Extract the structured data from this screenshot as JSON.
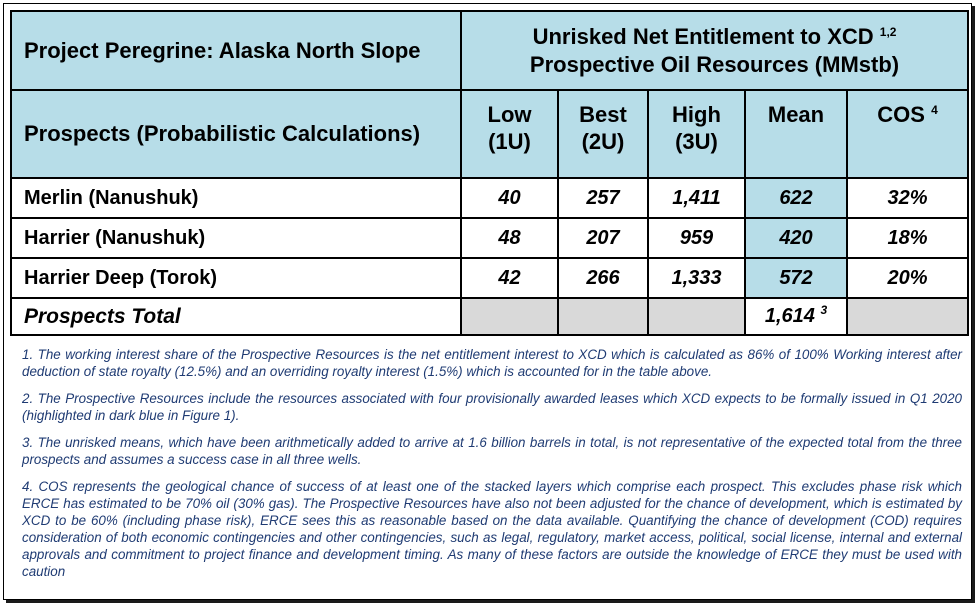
{
  "header": {
    "project": "Project Peregrine: Alaska North Slope",
    "entitlement_line1": "Unrisked Net Entitlement to XCD",
    "entitlement_sup": "1,2",
    "entitlement_line2": "Prospective Oil Resources (MMstb)"
  },
  "columns": {
    "prospects": "Prospects (Probabilistic Calculations)",
    "low": [
      "Low",
      "(1U)"
    ],
    "best": [
      "Best",
      "(2U)"
    ],
    "high": [
      "High",
      "(3U)"
    ],
    "mean": "Mean",
    "cos": "COS",
    "cos_sup": "4"
  },
  "rows": [
    {
      "name": "Merlin (Nanushuk)",
      "low": "40",
      "best": "257",
      "high": "1,411",
      "mean": "622",
      "cos": "32%"
    },
    {
      "name": "Harrier (Nanushuk)",
      "low": "48",
      "best": "207",
      "high": "959",
      "mean": "420",
      "cos": "18%"
    },
    {
      "name": "Harrier Deep (Torok)",
      "low": "42",
      "best": "266",
      "high": "1,333",
      "mean": "572",
      "cos": "20%"
    }
  ],
  "total": {
    "label": "Prospects Total",
    "mean": "1,614",
    "mean_sup": "3"
  },
  "notes": [
    "1. The working interest share of the Prospective Resources is the net entitlement interest to XCD which is calculated as 86% of 100% Working interest after deduction of state royalty (12.5%) and an overriding royalty interest (1.5%) which is accounted for in the table above.",
    "2. The Prospective Resources include the resources associated with four provisionally awarded leases which XCD expects to be formally issued in Q1 2020 (highlighted in dark blue in Figure 1).",
    "3. The unrisked means, which have been arithmetically added to arrive at 1.6 billion barrels in total, is not representative of the expected total from the three prospects and assumes a success case in all three wells.",
    "4. COS represents the geological chance of success of at least one of the stacked layers which comprise each prospect. This excludes phase risk which ERCE has estimated to be 70% oil (30% gas).  The Prospective Resources have also not been adjusted for the chance of development, which is estimated by XCD to be 60% (including phase risk), ERCE sees this as reasonable based on the data available. Quantifying the chance of development (COD) requires consideration of both economic contingencies and other contingencies, such as legal, regulatory, market access, political, social license, internal and external approvals and commitment to project finance and development timing.  As many of these factors are outside the knowledge of ERCE they must be used with caution"
  ],
  "colors": {
    "header_blue": "#b7dde8",
    "grey": "#d9d9d9",
    "note_text": "#1f3b73"
  }
}
